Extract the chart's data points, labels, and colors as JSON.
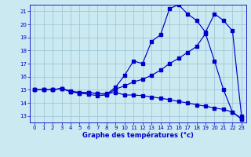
{
  "title": "Graphe des températures (°c)",
  "bg_color": "#cbe9f0",
  "grid_color": "#a0c8d8",
  "line_color": "#0000cc",
  "xlim": [
    -0.5,
    23.5
  ],
  "ylim": [
    12.5,
    21.5
  ],
  "xtick_labels": [
    "0",
    "1",
    "2",
    "3",
    "4",
    "5",
    "6",
    "7",
    "8",
    "9",
    "10",
    "11",
    "12",
    "13",
    "14",
    "15",
    "16",
    "17",
    "18",
    "19",
    "20",
    "21",
    "22",
    "23"
  ],
  "xtick_pos": [
    0,
    1,
    2,
    3,
    4,
    5,
    6,
    7,
    8,
    9,
    10,
    11,
    12,
    13,
    14,
    15,
    16,
    17,
    18,
    19,
    20,
    21,
    22,
    23
  ],
  "ytick_labels": [
    "13",
    "14",
    "15",
    "16",
    "17",
    "18",
    "19",
    "20",
    "21"
  ],
  "ytick_pos": [
    13,
    14,
    15,
    16,
    17,
    18,
    19,
    20,
    21
  ],
  "series1_x": [
    0,
    1,
    2,
    3,
    4,
    5,
    6,
    7,
    8,
    9,
    10,
    11,
    12,
    13,
    14,
    15,
    16,
    17,
    18,
    19,
    20,
    21,
    22,
    23
  ],
  "series1_y": [
    15.0,
    15.0,
    15.0,
    15.1,
    14.85,
    14.75,
    14.65,
    14.55,
    14.6,
    15.05,
    15.3,
    15.6,
    15.8,
    16.1,
    16.5,
    17.0,
    17.4,
    17.85,
    18.3,
    19.3,
    17.2,
    15.0,
    13.3,
    12.8
  ],
  "series2_x": [
    0,
    1,
    2,
    3,
    4,
    5,
    6,
    7,
    8,
    9,
    10,
    11,
    12,
    13,
    14,
    15,
    16,
    17,
    18,
    19,
    20,
    21,
    22,
    23
  ],
  "series2_y": [
    15.0,
    15.0,
    15.0,
    15.1,
    14.85,
    14.75,
    14.8,
    14.7,
    14.7,
    14.8,
    14.6,
    14.6,
    14.55,
    14.45,
    14.35,
    14.25,
    14.1,
    14.0,
    13.85,
    13.75,
    13.6,
    13.5,
    13.3,
    12.75
  ],
  "series3_x": [
    0,
    1,
    2,
    3,
    4,
    5,
    6,
    7,
    8,
    9,
    10,
    11,
    12,
    13,
    14,
    15,
    16,
    17,
    18,
    19,
    20,
    21,
    22,
    23
  ],
  "series3_y": [
    15.0,
    15.0,
    15.0,
    15.1,
    14.9,
    14.8,
    14.8,
    14.7,
    14.65,
    15.2,
    16.1,
    17.2,
    17.0,
    18.7,
    19.2,
    21.2,
    21.5,
    20.8,
    20.3,
    19.4,
    20.8,
    20.3,
    19.5,
    13.0
  ]
}
